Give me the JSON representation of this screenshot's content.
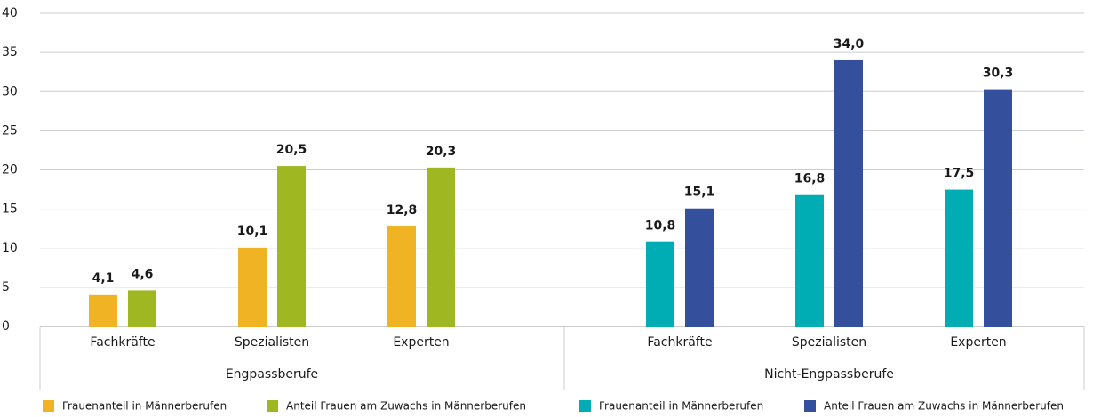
{
  "chart_data": {
    "type": "bar",
    "categories": [
      "Fachkräfte",
      "Spezialisten",
      "Experten",
      "Fachkräfte",
      "Spezialisten",
      "Experten"
    ],
    "groups": [
      "Engpassberufe",
      "Nicht-Engpassberufe"
    ],
    "series": [
      {
        "name": "Frauenanteil in Männerberufen",
        "color": "#f0b323",
        "values": [
          4.1,
          10.1,
          12.8,
          null,
          null,
          null
        ],
        "value_labels": [
          "4,1",
          "10,1",
          "12,8",
          null,
          null,
          null
        ]
      },
      {
        "name": "Anteil Frauen am Zuwachs in Männerberufen",
        "color": "#9fb721",
        "values": [
          4.6,
          20.5,
          20.3,
          null,
          null,
          null
        ],
        "value_labels": [
          "4,6",
          "20,5",
          "20,3",
          null,
          null,
          null
        ]
      },
      {
        "name": "Frauenanteil in Männerberufen",
        "color": "#00adb5",
        "values": [
          null,
          null,
          null,
          10.8,
          16.8,
          17.5
        ],
        "value_labels": [
          null,
          null,
          null,
          "10,8",
          "16,8",
          "17,5"
        ]
      },
      {
        "name": "Anteil Frauen am Zuwachs in Männerberufen",
        "color": "#34509c",
        "values": [
          null,
          null,
          null,
          15.1,
          34.0,
          30.3
        ],
        "value_labels": [
          null,
          null,
          null,
          "15,1",
          "34,0",
          "30,3"
        ]
      }
    ],
    "ylim": [
      0,
      40
    ],
    "yticks": [
      0,
      5,
      10,
      15,
      20,
      25,
      30,
      35,
      40
    ],
    "grid": true
  }
}
